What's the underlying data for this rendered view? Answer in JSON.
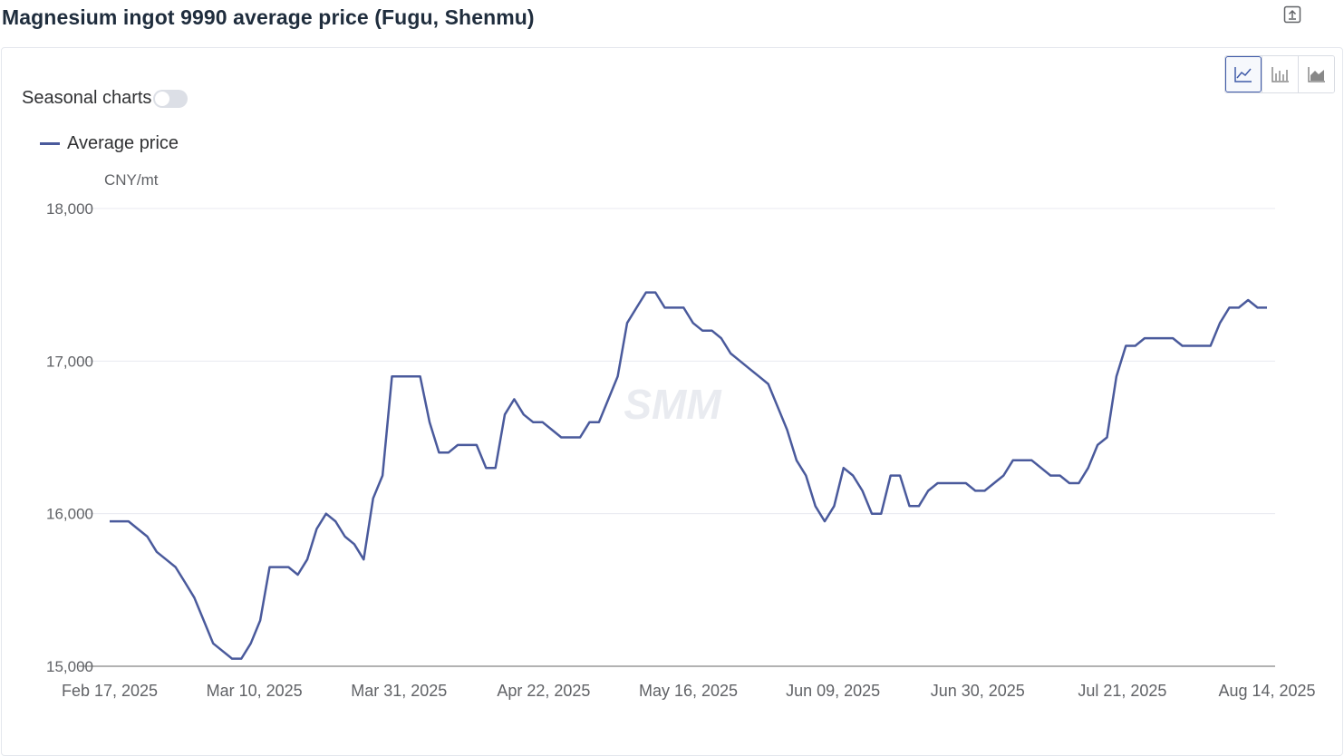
{
  "header": {
    "title": "Magnesium ingot 9990 average price (Fugu, Shenmu)",
    "export_icon": "export-icon"
  },
  "controls": {
    "seasonal_label": "Seasonal charts",
    "seasonal_on": false,
    "chart_types": [
      {
        "icon": "line-chart-icon",
        "active": true
      },
      {
        "icon": "bar-chart-icon",
        "active": false
      },
      {
        "icon": "area-chart-icon",
        "active": false
      }
    ]
  },
  "watermark": "SMM",
  "colors": {
    "series": "#4a5a9c",
    "grid": "#e8eaf0",
    "axis": "#606266"
  },
  "chart_data": {
    "type": "line",
    "title": "Magnesium ingot 9990 average price (Fugu, Shenmu)",
    "unit": "CNY/mt",
    "ylim": [
      15000,
      18000
    ],
    "y_ticks": [
      "15,000",
      "16,000",
      "17,000",
      "18,000"
    ],
    "y_tick_values": [
      15000,
      16000,
      17000,
      18000
    ],
    "x_ticks": [
      "Feb 17, 2025",
      "Mar 10, 2025",
      "Mar 31, 2025",
      "Apr 22, 2025",
      "May 16, 2025",
      "Jun 09, 2025",
      "Jun 30, 2025",
      "Jul 21, 2025",
      "Aug 14, 2025"
    ],
    "grid": true,
    "legend": "top-left",
    "series": [
      {
        "name": "Average price",
        "values": [
          15950,
          15950,
          15950,
          15900,
          15850,
          15750,
          15700,
          15650,
          15550,
          15450,
          15300,
          15150,
          15100,
          15050,
          15050,
          15150,
          15300,
          15650,
          15650,
          15650,
          15600,
          15700,
          15900,
          16000,
          15950,
          15850,
          15800,
          15700,
          16100,
          16250,
          16900,
          16900,
          16900,
          16900,
          16600,
          16400,
          16400,
          16450,
          16450,
          16450,
          16300,
          16300,
          16650,
          16750,
          16650,
          16600,
          16600,
          16550,
          16500,
          16500,
          16500,
          16600,
          16600,
          16750,
          16900,
          17250,
          17350,
          17450,
          17450,
          17350,
          17350,
          17350,
          17250,
          17200,
          17200,
          17150,
          17050,
          17000,
          16950,
          16900,
          16850,
          16700,
          16550,
          16350,
          16250,
          16050,
          15950,
          16050,
          16300,
          16250,
          16150,
          16000,
          16000,
          16250,
          16250,
          16050,
          16050,
          16150,
          16200,
          16200,
          16200,
          16200,
          16150,
          16150,
          16200,
          16250,
          16350,
          16350,
          16350,
          16300,
          16250,
          16250,
          16200,
          16200,
          16300,
          16450,
          16500,
          16900,
          17100,
          17100,
          17150,
          17150,
          17150,
          17150,
          17100,
          17100,
          17100,
          17100,
          17250,
          17350,
          17350,
          17400,
          17350,
          17350
        ]
      }
    ]
  }
}
